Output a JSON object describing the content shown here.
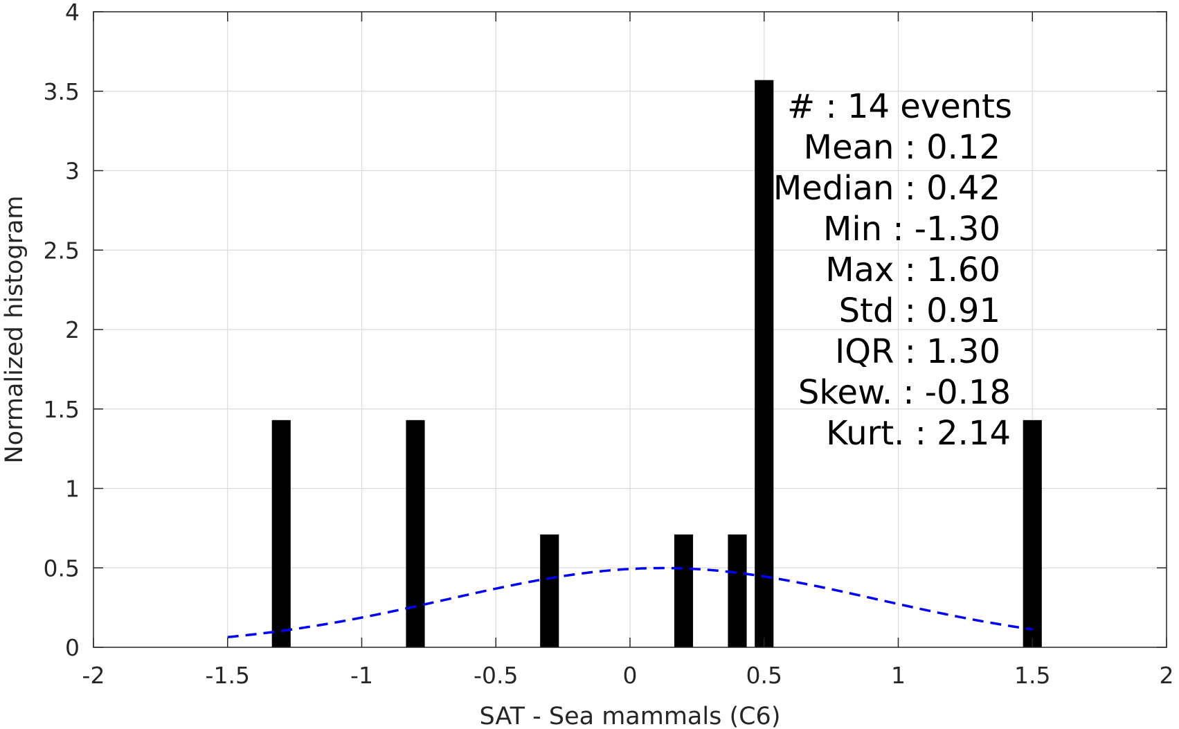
{
  "chart_data": {
    "type": "bar",
    "xlabel": "SAT - Sea mammals (C6)",
    "ylabel": "Normalized histogram",
    "xlim": [
      -2,
      2
    ],
    "ylim": [
      0,
      4
    ],
    "grid": true,
    "x_ticks": [
      -2,
      -1.5,
      -1,
      -0.5,
      0,
      0.5,
      1,
      1.5,
      2
    ],
    "x_tick_labels": [
      "-2",
      "-1.5",
      "-1",
      "-0.5",
      "0",
      "0.5",
      "1",
      "1.5",
      "2"
    ],
    "y_ticks": [
      0,
      0.5,
      1,
      1.5,
      2,
      2.5,
      3,
      3.5,
      4
    ],
    "y_tick_labels": [
      "0",
      "0.5",
      "1",
      "1.5",
      "2",
      "2.5",
      "3",
      "3.5",
      "4"
    ],
    "bar_width": 0.07,
    "bars": [
      {
        "x": -1.3,
        "value": 1.43
      },
      {
        "x": -0.8,
        "value": 1.43
      },
      {
        "x": -0.3,
        "value": 0.71
      },
      {
        "x": 0.2,
        "value": 0.71
      },
      {
        "x": 0.4,
        "value": 0.71
      },
      {
        "x": 0.5,
        "value": 3.57
      },
      {
        "x": 1.5,
        "value": 1.43
      }
    ],
    "bar_color": "#000000",
    "fit_curve": {
      "style": "dashed",
      "color": "#0000ff",
      "distribution": "normal",
      "mean": 0.12,
      "std": 0.8,
      "x_range": [
        -1.5,
        1.5
      ]
    },
    "stats_text": [
      "#  : 14 events",
      "Mean : 0.12",
      "Median : 0.42",
      "Min : -1.30",
      "Max : 1.60",
      "Std : 0.91",
      "IQR : 1.30",
      "Skew. : -0.18",
      "Kurt. : 2.14"
    ]
  }
}
